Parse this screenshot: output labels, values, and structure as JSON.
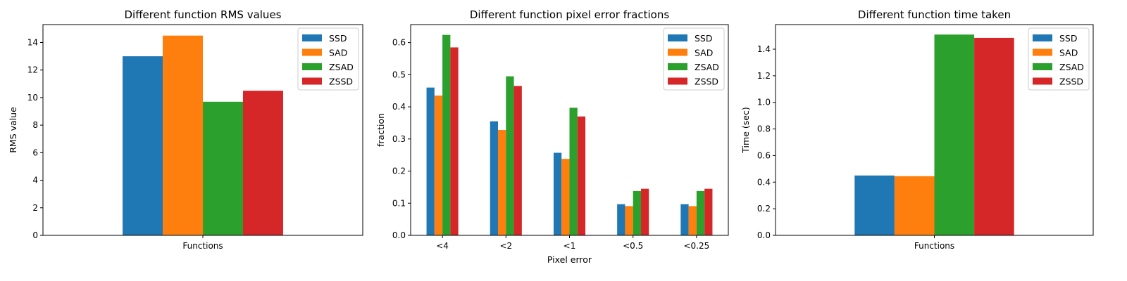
{
  "chart_data": [
    {
      "type": "bar",
      "title": "Different function RMS values",
      "xlabel": "",
      "ylabel": "RMS value",
      "categories": [
        "Functions"
      ],
      "series": [
        {
          "name": "SSD",
          "color": "#1f77b4",
          "values": [
            13.0
          ]
        },
        {
          "name": "SAD",
          "color": "#ff7f0e",
          "values": [
            14.5
          ]
        },
        {
          "name": "ZSAD",
          "color": "#2ca02c",
          "values": [
            9.7
          ]
        },
        {
          "name": "ZSSD",
          "color": "#d62728",
          "values": [
            10.5
          ]
        }
      ],
      "ylim": [
        0,
        15.3
      ],
      "yticks": [
        0,
        2,
        4,
        6,
        8,
        10,
        12,
        14
      ],
      "ytick_labels": [
        "0",
        "2",
        "4",
        "6",
        "8",
        "10",
        "12",
        "14"
      ],
      "legend_position": "top-right",
      "grid": false
    },
    {
      "type": "bar",
      "title": "Different function pixel error fractions",
      "xlabel": "Pixel error",
      "ylabel": "fraction",
      "categories": [
        "<4",
        "<2",
        "<1",
        "<0.5",
        "<0.25"
      ],
      "series": [
        {
          "name": "SSD",
          "color": "#1f77b4",
          "values": [
            0.46,
            0.355,
            0.257,
            0.097,
            0.097
          ]
        },
        {
          "name": "SAD",
          "color": "#ff7f0e",
          "values": [
            0.435,
            0.328,
            0.238,
            0.091,
            0.091
          ]
        },
        {
          "name": "ZSAD",
          "color": "#2ca02c",
          "values": [
            0.624,
            0.495,
            0.397,
            0.138,
            0.138
          ]
        },
        {
          "name": "ZSSD",
          "color": "#d62728",
          "values": [
            0.585,
            0.465,
            0.37,
            0.145,
            0.145
          ]
        }
      ],
      "ylim": [
        0,
        0.656
      ],
      "yticks": [
        0,
        0.1,
        0.2,
        0.3,
        0.4,
        0.5,
        0.6
      ],
      "ytick_labels": [
        "0.0",
        "0.1",
        "0.2",
        "0.3",
        "0.4",
        "0.5",
        "0.6"
      ],
      "legend_position": "top-right",
      "grid": false
    },
    {
      "type": "bar",
      "title": "Different function time taken",
      "xlabel": "",
      "ylabel": "Time (sec)",
      "categories": [
        "Functions"
      ],
      "series": [
        {
          "name": "SSD",
          "color": "#1f77b4",
          "values": [
            0.45
          ]
        },
        {
          "name": "SAD",
          "color": "#ff7f0e",
          "values": [
            0.445
          ]
        },
        {
          "name": "ZSAD",
          "color": "#2ca02c",
          "values": [
            1.51
          ]
        },
        {
          "name": "ZSSD",
          "color": "#d62728",
          "values": [
            1.485
          ]
        }
      ],
      "ylim": [
        0,
        1.585
      ],
      "yticks": [
        0,
        0.2,
        0.4,
        0.6,
        0.8,
        1.0,
        1.2,
        1.4
      ],
      "ytick_labels": [
        "0.0",
        "0.2",
        "0.4",
        "0.6",
        "0.8",
        "1.0",
        "1.2",
        "1.4"
      ],
      "legend_position": "top-right",
      "grid": false
    }
  ]
}
